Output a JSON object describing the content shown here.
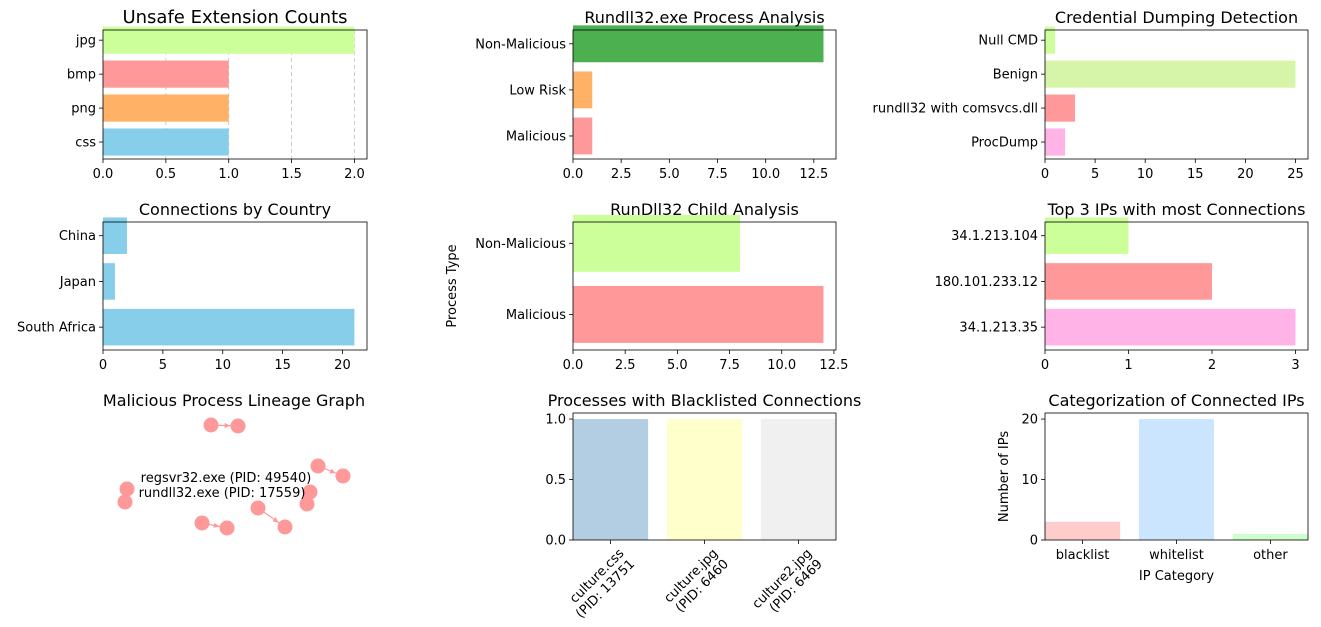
{
  "chart_data": [
    {
      "type": "bar",
      "orientation": "horizontal",
      "title": "Unsafe Extension Counts",
      "xlabel": "",
      "ylabel": "",
      "categories": [
        "css",
        "png",
        "bmp",
        "jpg"
      ],
      "values": [
        1,
        1,
        1,
        2
      ],
      "colors": [
        "#87ceeb",
        "#ffb266",
        "#ff9999",
        "#ccff99"
      ],
      "xlim": [
        0,
        2.1
      ],
      "xticks": [
        "0.0",
        "0.5",
        "1.0",
        "1.5",
        "2.0"
      ],
      "xtick_values": [
        0,
        0.5,
        1,
        1.5,
        2
      ],
      "grid": "x-dashed"
    },
    {
      "type": "bar",
      "orientation": "horizontal",
      "title": "Rundll32.exe Process Analysis",
      "xlabel": "",
      "ylabel": "",
      "categories": [
        "Malicious",
        "Low Risk",
        "Non-Malicious"
      ],
      "values": [
        1,
        1,
        13
      ],
      "colors": [
        "#ff9999",
        "#ffb266",
        "#4caf50"
      ],
      "xlim": [
        0,
        13.65
      ],
      "xticks": [
        "0.0",
        "2.5",
        "5.0",
        "7.5",
        "10.0",
        "12.5"
      ],
      "xtick_values": [
        0,
        2.5,
        5,
        7.5,
        10,
        12.5
      ],
      "grid": "none"
    },
    {
      "type": "bar",
      "orientation": "horizontal",
      "title": "Credential Dumping Detection",
      "xlabel": "",
      "ylabel": "",
      "categories": [
        "ProcDump",
        "rundll32 with comsvcs.dll",
        "Benign",
        "Null CMD"
      ],
      "values": [
        2,
        3,
        25,
        1
      ],
      "colors": [
        "#ffb3e6",
        "#ff9999",
        "#d7f5a8",
        "#ccff99"
      ],
      "xlim": [
        0,
        26.25
      ],
      "xticks": [
        "0",
        "5",
        "10",
        "15",
        "20",
        "25"
      ],
      "xtick_values": [
        0,
        5,
        10,
        15,
        20,
        25
      ],
      "grid": "none"
    },
    {
      "type": "bar",
      "orientation": "horizontal",
      "title": "Connections by Country",
      "xlabel": "",
      "ylabel": "",
      "categories": [
        "South Africa",
        "Japan",
        "China"
      ],
      "values": [
        21,
        1,
        2
      ],
      "colors": [
        "#87ceeb",
        "#87ceeb",
        "#87ceeb"
      ],
      "xlim": [
        0,
        22.05
      ],
      "xticks": [
        "0",
        "5",
        "10",
        "15",
        "20"
      ],
      "xtick_values": [
        0,
        5,
        10,
        15,
        20
      ],
      "grid": "none"
    },
    {
      "type": "bar",
      "orientation": "horizontal",
      "title": "RunDll32 Child Analysis",
      "xlabel": "",
      "ylabel": "Process Type",
      "categories": [
        "Malicious",
        "Non-Malicious"
      ],
      "values": [
        12,
        8
      ],
      "colors": [
        "#ff9999",
        "#ccff99"
      ],
      "xlim": [
        0,
        12.6
      ],
      "xticks": [
        "0.0",
        "2.5",
        "5.0",
        "7.5",
        "10.0",
        "12.5"
      ],
      "xtick_values": [
        0,
        2.5,
        5,
        7.5,
        10,
        12.5
      ],
      "grid": "none"
    },
    {
      "type": "bar",
      "orientation": "horizontal",
      "title": "Top 3 IPs with most Connections",
      "xlabel": "",
      "ylabel": "",
      "categories": [
        "34.1.213.35",
        "180.101.233.12",
        "34.1.213.104"
      ],
      "values": [
        3,
        2,
        1
      ],
      "colors": [
        "#ffb3e6",
        "#ff9999",
        "#ccff99"
      ],
      "xlim": [
        0,
        3.15
      ],
      "xticks": [
        "0",
        "1",
        "2",
        "3"
      ],
      "xtick_values": [
        0,
        1,
        2,
        3
      ],
      "grid": "none"
    },
    {
      "type": "network",
      "title": "Malicious Process Lineage Graph",
      "node_color": "#ff9999",
      "node_labels": [
        "regsvr32.exe (PID: 49540)",
        "rundll32.exe (PID: 17559)"
      ],
      "node_count": 14,
      "edge_count": 5
    },
    {
      "type": "bar",
      "orientation": "vertical",
      "title": "Processes with Blacklisted Connections",
      "xlabel": "",
      "ylabel": "",
      "categories": [
        "culture.css\n(PID: 13751",
        "culture.jpg\n(PID: 6460",
        "culture2.jpg\n(PID: 6469"
      ],
      "values": [
        1,
        1,
        1
      ],
      "colors": [
        "#b3cde3",
        "#ffffcc",
        "#f0f0f0"
      ],
      "ylim": [
        0,
        1.05
      ],
      "yticks": [
        "0.0",
        "0.5",
        "1.0"
      ],
      "ytick_values": [
        0,
        0.5,
        1
      ],
      "grid": "none"
    },
    {
      "type": "bar",
      "orientation": "vertical",
      "title": "Categorization of Connected IPs",
      "xlabel": "IP Category",
      "ylabel": "Number of IPs",
      "categories": [
        "blacklist",
        "whitelist",
        "other"
      ],
      "values": [
        3,
        20,
        1
      ],
      "colors": [
        "#ffcccc",
        "#cce5ff",
        "#ccffcc"
      ],
      "ylim": [
        0,
        21
      ],
      "yticks": [
        "0",
        "10",
        "20"
      ],
      "ytick_values": [
        0,
        10,
        20
      ],
      "grid": "none"
    }
  ]
}
